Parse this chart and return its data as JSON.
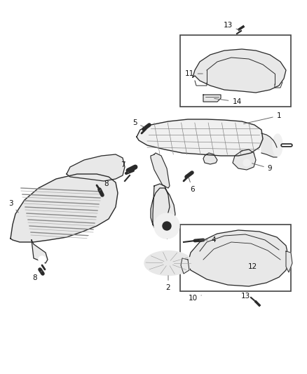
{
  "background_color": "#ffffff",
  "figure_width": 4.38,
  "figure_height": 5.33,
  "dpi": 100,
  "line_color": "#2a2a2a",
  "part_fill": "#e8e8e8",
  "part_fill_light": "#f0f0f0",
  "box_edge_color": "#444444",
  "label_fontsize": 7.5,
  "label_color": "#111111",
  "leader_color": "#666666",
  "screw_color": "#333333"
}
